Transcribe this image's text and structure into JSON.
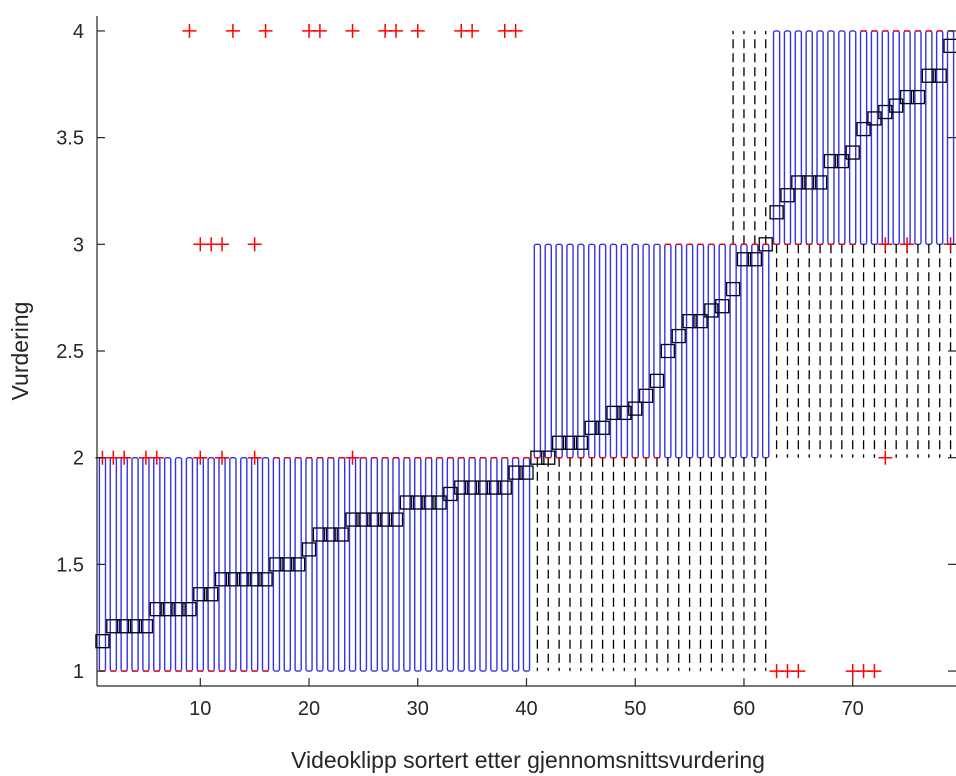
{
  "chart_data": {
    "type": "boxplot",
    "title": "",
    "xlabel": "Videoklipp sortert etter gjennomsnittsvurdering",
    "ylabel": "Vurdering",
    "xlim": [
      0.5,
      79.5
    ],
    "ylim": [
      0.93,
      4.07
    ],
    "xticks": [
      10,
      20,
      30,
      40,
      50,
      60,
      70
    ],
    "xtick_labels": [
      "10",
      "20",
      "30",
      "40",
      "50",
      "60",
      "70"
    ],
    "yticks": [
      1,
      1.5,
      2,
      2.5,
      3,
      3.5,
      4
    ],
    "ytick_labels": [
      "1",
      "1.5",
      "2",
      "2.5",
      "3",
      "3.5",
      "4"
    ],
    "grid": false,
    "colors": {
      "box": "#3333e6",
      "whisker": "#000000",
      "median": "#ff0000",
      "outlier": "#ff0000",
      "mean_marker": "#000000",
      "axis": "#262626"
    },
    "means": [
      1.14,
      1.21,
      1.21,
      1.21,
      1.21,
      1.29,
      1.29,
      1.29,
      1.29,
      1.36,
      1.36,
      1.43,
      1.43,
      1.43,
      1.43,
      1.43,
      1.5,
      1.5,
      1.5,
      1.57,
      1.64,
      1.64,
      1.64,
      1.71,
      1.71,
      1.71,
      1.71,
      1.71,
      1.79,
      1.79,
      1.79,
      1.79,
      1.83,
      1.86,
      1.86,
      1.86,
      1.86,
      1.86,
      1.93,
      1.93,
      2.0,
      2.0,
      2.07,
      2.07,
      2.07,
      2.14,
      2.14,
      2.21,
      2.21,
      2.23,
      2.29,
      2.36,
      2.5,
      2.57,
      2.64,
      2.64,
      2.69,
      2.71,
      2.79,
      2.93,
      2.93,
      3.0,
      3.15,
      3.23,
      3.29,
      3.29,
      3.29,
      3.39,
      3.39,
      3.43,
      3.54,
      3.59,
      3.62,
      3.65,
      3.69,
      3.69,
      3.79,
      3.79,
      3.93
    ],
    "outliers": [
      {
        "x": 1,
        "y": 2
      },
      {
        "x": 2,
        "y": 2
      },
      {
        "x": 3,
        "y": 2
      },
      {
        "x": 5,
        "y": 2
      },
      {
        "x": 6,
        "y": 2
      },
      {
        "x": 9,
        "y": 4
      },
      {
        "x": 13,
        "y": 4
      },
      {
        "x": 16,
        "y": 4
      },
      {
        "x": 20,
        "y": 4
      },
      {
        "x": 21,
        "y": 4
      },
      {
        "x": 24,
        "y": 4
      },
      {
        "x": 27,
        "y": 4
      },
      {
        "x": 28,
        "y": 4
      },
      {
        "x": 30,
        "y": 4
      },
      {
        "x": 34,
        "y": 4
      },
      {
        "x": 35,
        "y": 4
      },
      {
        "x": 38,
        "y": 4
      },
      {
        "x": 39,
        "y": 4
      },
      {
        "x": 10,
        "y": 3
      },
      {
        "x": 11,
        "y": 3
      },
      {
        "x": 12,
        "y": 3
      },
      {
        "x": 15,
        "y": 3
      },
      {
        "x": 10,
        "y": 2
      },
      {
        "x": 12,
        "y": 2
      },
      {
        "x": 15,
        "y": 2
      },
      {
        "x": 24,
        "y": 2
      },
      {
        "x": 63,
        "y": 1
      },
      {
        "x": 64,
        "y": 1
      },
      {
        "x": 65,
        "y": 1
      },
      {
        "x": 70,
        "y": 1
      },
      {
        "x": 71,
        "y": 1
      },
      {
        "x": 72,
        "y": 1
      },
      {
        "x": 73,
        "y": 3
      },
      {
        "x": 75,
        "y": 3
      },
      {
        "x": 79,
        "y": 3
      },
      {
        "x": 73,
        "y": 2
      }
    ]
  }
}
